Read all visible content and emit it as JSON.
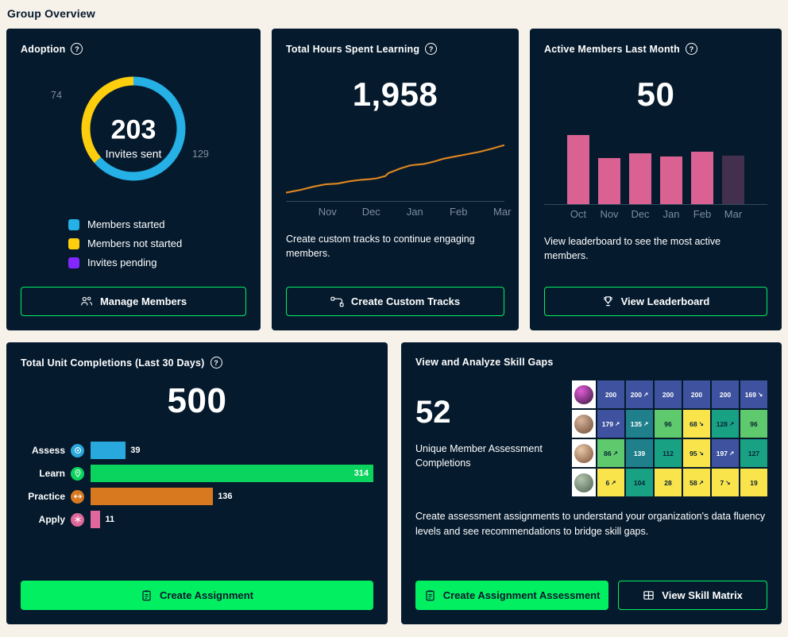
{
  "page": {
    "title": "Group Overview",
    "background": "#f6f1e9"
  },
  "glyphs": {
    "help": "?",
    "trend_up": "↗",
    "trend_down": "↘"
  },
  "colors": {
    "card_bg": "#051a2d",
    "accent_green": "#03ef62",
    "navy_text": "#05192d",
    "axis": "#35495c",
    "tick_label": "#7b8ea0"
  },
  "cards": {
    "adoption": {
      "title": "Adoption",
      "button_label": "Manage Members"
    },
    "hours": {
      "title": "Total Hours Spent Learning",
      "caption": "Create custom tracks to continue engaging members.",
      "button_label": "Create Custom Tracks"
    },
    "active": {
      "title": "Active Members Last Month",
      "caption": "View leaderboard to see the most active members.",
      "button_label": "View Leaderboard"
    },
    "completions": {
      "title": "Total Unit Completions (Last 30 Days)",
      "button_label": "Create Assignment"
    },
    "skills": {
      "title": "View and Analyze Skill Gaps",
      "headline": "52",
      "headline_caption": "Unique Member Assessment Completions",
      "description": "Create assessment assignments to understand your organization's data fluency levels and see recommendations to bridge skill gaps.",
      "primary_button_label": "Create Assignment Assessment",
      "secondary_button_label": "View Skill Matrix"
    }
  },
  "chart_data": [
    {
      "id": "adoption-donut",
      "type": "pie",
      "total": "203",
      "total_label": "Invites sent",
      "callouts": {
        "left": "74",
        "right": "129"
      },
      "slices": [
        {
          "label": "Members started",
          "value": 129,
          "color": "#25b0e6"
        },
        {
          "label": "Members not started",
          "value": 74,
          "color": "#fcce0d"
        },
        {
          "label": "Invites pending",
          "value": 0,
          "color": "#8228ff"
        }
      ]
    },
    {
      "id": "hours-line",
      "type": "line",
      "headline": "1,958",
      "line_color": "#e0871f",
      "x_ticks": [
        "Nov",
        "Dec",
        "Jan",
        "Feb",
        "Mar"
      ],
      "tick_pos": [
        19,
        39,
        59,
        79,
        99
      ],
      "points": [
        [
          0,
          69
        ],
        [
          20,
          65
        ],
        [
          35,
          61
        ],
        [
          50,
          58
        ],
        [
          65,
          57
        ],
        [
          80,
          54
        ],
        [
          95,
          52
        ],
        [
          108,
          51
        ],
        [
          115,
          50
        ],
        [
          126,
          47
        ],
        [
          130,
          43
        ],
        [
          145,
          37
        ],
        [
          157,
          33
        ],
        [
          165,
          32
        ],
        [
          175,
          31
        ],
        [
          187,
          28
        ],
        [
          200,
          24
        ],
        [
          215,
          21
        ],
        [
          230,
          18
        ],
        [
          245,
          15
        ],
        [
          260,
          11
        ],
        [
          270,
          8
        ],
        [
          277,
          6
        ]
      ]
    },
    {
      "id": "active-bars",
      "type": "bar",
      "headline": "50",
      "categories": [
        "Oct",
        "Nov",
        "Dec",
        "Jan",
        "Feb",
        "Mar"
      ],
      "values": [
        66,
        44,
        48,
        45,
        50,
        46
      ],
      "ymax": 68,
      "bar_color": "#d96292",
      "muted_last_color": "#43304e"
    },
    {
      "id": "completions-hbars",
      "type": "bar",
      "orientation": "horizontal",
      "headline": "500",
      "categories": [
        "Assess",
        "Learn",
        "Practice",
        "Apply"
      ],
      "values": [
        39,
        314,
        136,
        11
      ],
      "bar_colors": [
        "#29a8dd",
        "#0bd45e",
        "#d9791f",
        "#e0679c"
      ],
      "icons": [
        "assess",
        "learn",
        "practice",
        "apply"
      ]
    },
    {
      "id": "skill-heatmap",
      "type": "heatmap",
      "palette": {
        "indigo": {
          "bg": "#3e529f",
          "fg": "#ffffff"
        },
        "teal": {
          "bg": "#1f808c",
          "fg": "#ffffff"
        },
        "seagreen": {
          "bg": "#18a183",
          "fg": "#0a2236"
        },
        "green": {
          "bg": "#5fc96d",
          "fg": "#0a2236"
        },
        "yellow": {
          "bg": "#f9e44c",
          "fg": "#0a2236"
        }
      },
      "avatars": [
        [
          "#e35bd8",
          "#31173a"
        ],
        [
          "#d8b49a",
          "#6b4a36"
        ],
        [
          "#e8c9a8",
          "#7d4e35"
        ],
        [
          "#b5c4ae",
          "#48604f"
        ]
      ],
      "rows": [
        [
          {
            "v": "200",
            "c": "indigo"
          },
          {
            "v": "200",
            "c": "indigo",
            "t": "up"
          },
          {
            "v": "200",
            "c": "indigo"
          },
          {
            "v": "200",
            "c": "indigo"
          },
          {
            "v": "200",
            "c": "indigo"
          },
          {
            "v": "169",
            "c": "indigo",
            "t": "down"
          }
        ],
        [
          {
            "v": "179",
            "c": "indigo",
            "t": "up"
          },
          {
            "v": "135",
            "c": "teal",
            "t": "up"
          },
          {
            "v": "96",
            "c": "green"
          },
          {
            "v": "68",
            "c": "yellow",
            "t": "down"
          },
          {
            "v": "128",
            "c": "seagreen",
            "t": "up"
          },
          {
            "v": "96",
            "c": "green"
          }
        ],
        [
          {
            "v": "86",
            "c": "green",
            "t": "up"
          },
          {
            "v": "139",
            "c": "teal"
          },
          {
            "v": "112",
            "c": "seagreen"
          },
          {
            "v": "95",
            "c": "yellow",
            "t": "down"
          },
          {
            "v": "197",
            "c": "indigo",
            "t": "up"
          },
          {
            "v": "127",
            "c": "seagreen"
          }
        ],
        [
          {
            "v": "6",
            "c": "yellow",
            "t": "up"
          },
          {
            "v": "104",
            "c": "seagreen"
          },
          {
            "v": "28",
            "c": "yellow"
          },
          {
            "v": "58",
            "c": "yellow",
            "t": "up"
          },
          {
            "v": "7",
            "c": "yellow",
            "t": "down"
          },
          {
            "v": "19",
            "c": "yellow"
          }
        ]
      ]
    }
  ]
}
